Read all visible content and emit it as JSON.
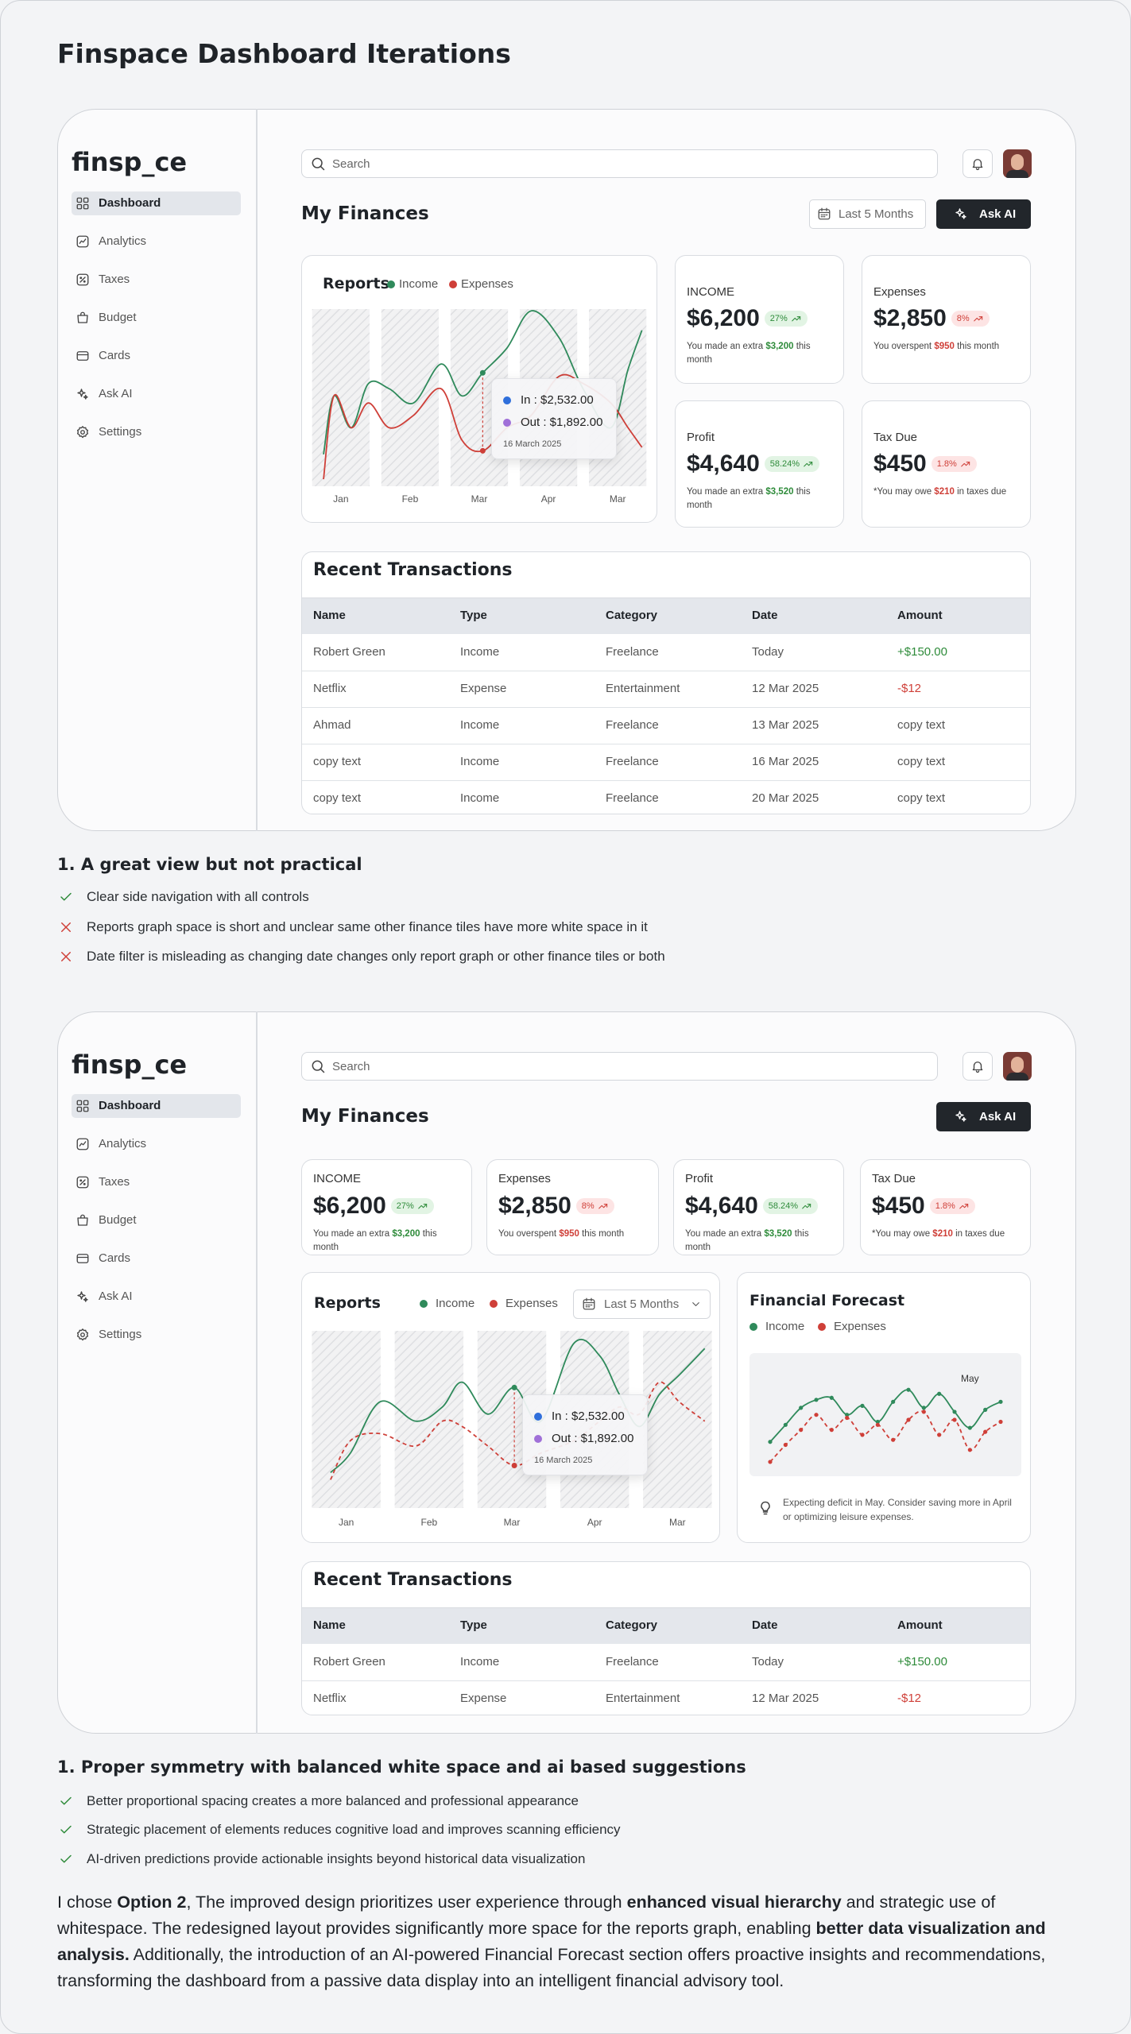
{
  "title": "Finspace Dashboard Iterations",
  "dashboards": [
    {
      "logo": "finsp_ce",
      "nav": [
        "Dashboard",
        "Analytics",
        "Taxes",
        "Budget",
        "Cards",
        "Ask AI",
        "Settings"
      ],
      "active": 0,
      "search": "Search",
      "heading": "My Finances",
      "date_filter": "Last 5 Months",
      "ask": "Ask AI",
      "tiles": [
        {
          "label": "INCOME",
          "amount": "$6,200",
          "badge": "27%",
          "color": "#2e8b3a",
          "badge_bg": "#e2f4e4",
          "note": [
            "You made an extra ",
            "$3,200",
            " this month"
          ]
        },
        {
          "label": "Expenses",
          "amount": "$2,850",
          "badge": "8%",
          "color": "#cf3f38",
          "badge_bg": "#fde4e4",
          "note": [
            "You overspent ",
            "$950",
            " this month"
          ]
        },
        {
          "label": "Profit",
          "amount": "$4,640",
          "badge": "58.24%",
          "color": "#2e8b3a",
          "badge_bg": "#e2f4e4",
          "note": [
            "You made an extra ",
            "$3,520",
            " this month"
          ]
        },
        {
          "label": "Tax Due",
          "amount": "$450",
          "badge": "1.8%",
          "color": "#cf3f38",
          "badge_bg": "#fde4e4",
          "note": [
            "*You may owe ",
            "$210",
            " in taxes due"
          ]
        }
      ],
      "transactions": {
        "title": "Recent Transactions",
        "columns": [
          "Name",
          "Type",
          "Category",
          "Date",
          "Amount"
        ],
        "rows": [
          [
            "Robert Green",
            "Income",
            "Freelance",
            "Today",
            "+$150.00"
          ],
          [
            "Netflix",
            "Expense",
            "Entertainment",
            "12 Mar 2025",
            "-$12"
          ],
          [
            "Ahmad",
            "Income",
            "Freelance",
            "13 Mar 2025",
            "copy text"
          ],
          [
            "copy text",
            "Income",
            "Freelance",
            "16 Mar 2025",
            "copy text"
          ],
          [
            "copy text",
            "Income",
            "Freelance",
            "20 Mar 2025",
            "copy text"
          ]
        ]
      }
    },
    {
      "logo": "finsp_ce",
      "nav": [
        "Dashboard",
        "Analytics",
        "Taxes",
        "Budget",
        "Cards",
        "Ask AI",
        "Settings"
      ],
      "active": 0,
      "search": "Search",
      "heading": "My Finances",
      "date_filter": "Last 5 Months",
      "ask": "Ask AI",
      "tiles": [
        {
          "label": "INCOME",
          "amount": "$6,200",
          "badge": "27%",
          "color": "#2e8b3a",
          "badge_bg": "#e2f4e4",
          "note": [
            "You made an extra ",
            "$3,200",
            " this month"
          ]
        },
        {
          "label": "Expenses",
          "amount": "$2,850",
          "badge": "8%",
          "color": "#cf3f38",
          "badge_bg": "#fde4e4",
          "note": [
            "You overspent ",
            "$950",
            " this month"
          ]
        },
        {
          "label": "Profit",
          "amount": "$4,640",
          "badge": "58.24%",
          "color": "#2e8b3a",
          "badge_bg": "#e2f4e4",
          "note": [
            "You made an extra ",
            "$3,520",
            " this month"
          ]
        },
        {
          "label": "Tax Due",
          "amount": "$450",
          "badge": "1.8%",
          "color": "#cf3f38",
          "badge_bg": "#fde4e4",
          "note": [
            "*You may owe ",
            "$210",
            " in taxes due"
          ]
        }
      ],
      "transactions": {
        "title": "Recent Transactions",
        "columns": [
          "Name",
          "Type",
          "Category",
          "Date",
          "Amount"
        ],
        "rows": [
          [
            "Robert Green",
            "Income",
            "Freelance",
            "Today",
            "+$150.00"
          ],
          [
            "Netflix",
            "Expense",
            "Entertainment",
            "12 Mar 2025",
            "-$12"
          ]
        ]
      }
    }
  ],
  "notes": [
    {
      "heading": "1. A great view but not practical",
      "items": [
        {
          "text": "Clear side navigation with all controls",
          "ok": true
        },
        {
          "text": "Reports graph space is short and unclear same other finance tiles have more white space in it",
          "ok": false
        },
        {
          "text": "Date filter is misleading as changing date changes only report graph or other finance tiles or both",
          "ok": false
        }
      ]
    },
    {
      "heading": "1. Proper symmetry with balanced white space and ai based suggestions",
      "items": [
        {
          "text": "Better proportional spacing creates a more balanced and professional appearance",
          "ok": true
        },
        {
          "text": "Strategic placement of elements reduces cognitive load and improves scanning efficiency",
          "ok": true
        },
        {
          "text": "AI-driven predictions provide actionable insights beyond historical data visualization",
          "ok": true
        }
      ]
    }
  ],
  "conclusion": [
    {
      "text": "I chose ",
      "bold": false
    },
    {
      "text": "Option 2",
      "bold": true
    },
    {
      "text": ", The improved design prioritizes user experience through ",
      "bold": false
    },
    {
      "text": "enhanced visual hierarchy",
      "bold": true
    },
    {
      "text": " and strategic use of whitespace. The redesigned layout provides significantly more space for the reports graph, enabling ",
      "bold": false
    },
    {
      "text": "better data visualization and analysis.",
      "bold": true
    },
    {
      "text": " Additionally, the introduction of an AI-powered Financial Forecast section offers proactive insights and recommendations, transforming the dashboard from a passive data display into an intelligent financial advisory tool.",
      "bold": false
    }
  ],
  "chart_data": [
    {
      "type": "line",
      "title": "Reports",
      "x": [
        -0.25,
        -0.1,
        0.15,
        0.4,
        0.7,
        1.05,
        1.45,
        1.75,
        2.05,
        2.4,
        2.75,
        3.15,
        3.5,
        3.9,
        4.15,
        4.35
      ],
      "xlim": [
        -0.4,
        4.4
      ],
      "xticks": [
        {
          "value": 0,
          "label": "Jan"
        },
        {
          "value": 1,
          "label": "Feb"
        },
        {
          "value": 2,
          "label": "Mar"
        },
        {
          "value": 3,
          "label": "Apr"
        },
        {
          "value": 4,
          "label": "Mar"
        }
      ],
      "ylim": [
        0,
        100
      ],
      "series": [
        {
          "name": "Income",
          "color": "#2f8a5b",
          "dashed": false,
          "values": [
            18,
            51,
            33,
            58,
            55,
            47,
            69,
            51,
            64,
            78,
            99,
            84,
            55,
            33,
            66,
            88
          ]
        },
        {
          "name": "Expenses",
          "color": "#cf3f38",
          "dashed": false,
          "values": [
            4,
            51,
            33,
            47,
            33,
            40,
            55,
            26,
            20,
            33,
            40,
            62,
            58,
            47,
            33,
            22
          ]
        }
      ],
      "tooltip": {
        "index": 8,
        "lines": [
          "In : $2,532.00",
          "Out : $1,892.00"
        ],
        "dot_colors": [
          "#2f6fdb",
          "#a070d8"
        ],
        "date": "16 March 2025"
      }
    },
    {
      "type": "line",
      "title": "Reports",
      "filter": "Last 5 Months",
      "x": [
        -0.19,
        0.05,
        0.41,
        0.84,
        1.16,
        1.4,
        1.71,
        2.03,
        2.35,
        2.75,
        3.06,
        3.3,
        3.54,
        3.78,
        4.02,
        4.33
      ],
      "xlim": [
        -0.4,
        4.4
      ],
      "xticks": [
        {
          "value": 0,
          "label": "Jan"
        },
        {
          "value": 1,
          "label": "Feb"
        },
        {
          "value": 2,
          "label": "Mar"
        },
        {
          "value": 3,
          "label": "Apr"
        },
        {
          "value": 4,
          "label": "Mar"
        }
      ],
      "ylim": [
        0,
        100
      ],
      "series": [
        {
          "name": "Income",
          "color": "#2f8a5b",
          "dashed": false,
          "values": [
            20,
            31,
            60,
            49,
            57,
            71,
            53,
            68,
            49,
            93,
            86,
            64,
            46,
            64,
            75,
            90
          ]
        },
        {
          "name": "Expenses",
          "color": "#cf3f38",
          "dashed": true,
          "values": [
            16,
            38,
            42,
            35,
            49,
            46,
            35,
            24,
            31,
            38,
            49,
            57,
            53,
            71,
            60,
            49
          ]
        }
      ],
      "tooltip": {
        "index": 7,
        "lines": [
          "In : $2,532.00",
          "Out : $1,892.00"
        ],
        "dot_colors": [
          "#2f6fdb",
          "#a070d8"
        ],
        "date": "16 March 2025"
      }
    },
    {
      "type": "line",
      "title": "Financial Forecast",
      "ylim": [
        0,
        100
      ],
      "markers": true,
      "series": [
        {
          "name": "Income",
          "color": "#2f8a5b",
          "dashed": false,
          "values": [
            28,
            45,
            62,
            70,
            72,
            55,
            64,
            48,
            68,
            80,
            62,
            76,
            58,
            42,
            60,
            68
          ]
        },
        {
          "name": "Expenses",
          "color": "#cf3f38",
          "dashed": true,
          "values": [
            8,
            25,
            40,
            55,
            40,
            52,
            35,
            45,
            30,
            50,
            58,
            35,
            50,
            20,
            38,
            48
          ]
        }
      ],
      "annotation": {
        "index": 13,
        "text": "May"
      },
      "insight": "Expecting deficit in May. Consider saving more in April or optimizing leisure expenses."
    }
  ]
}
